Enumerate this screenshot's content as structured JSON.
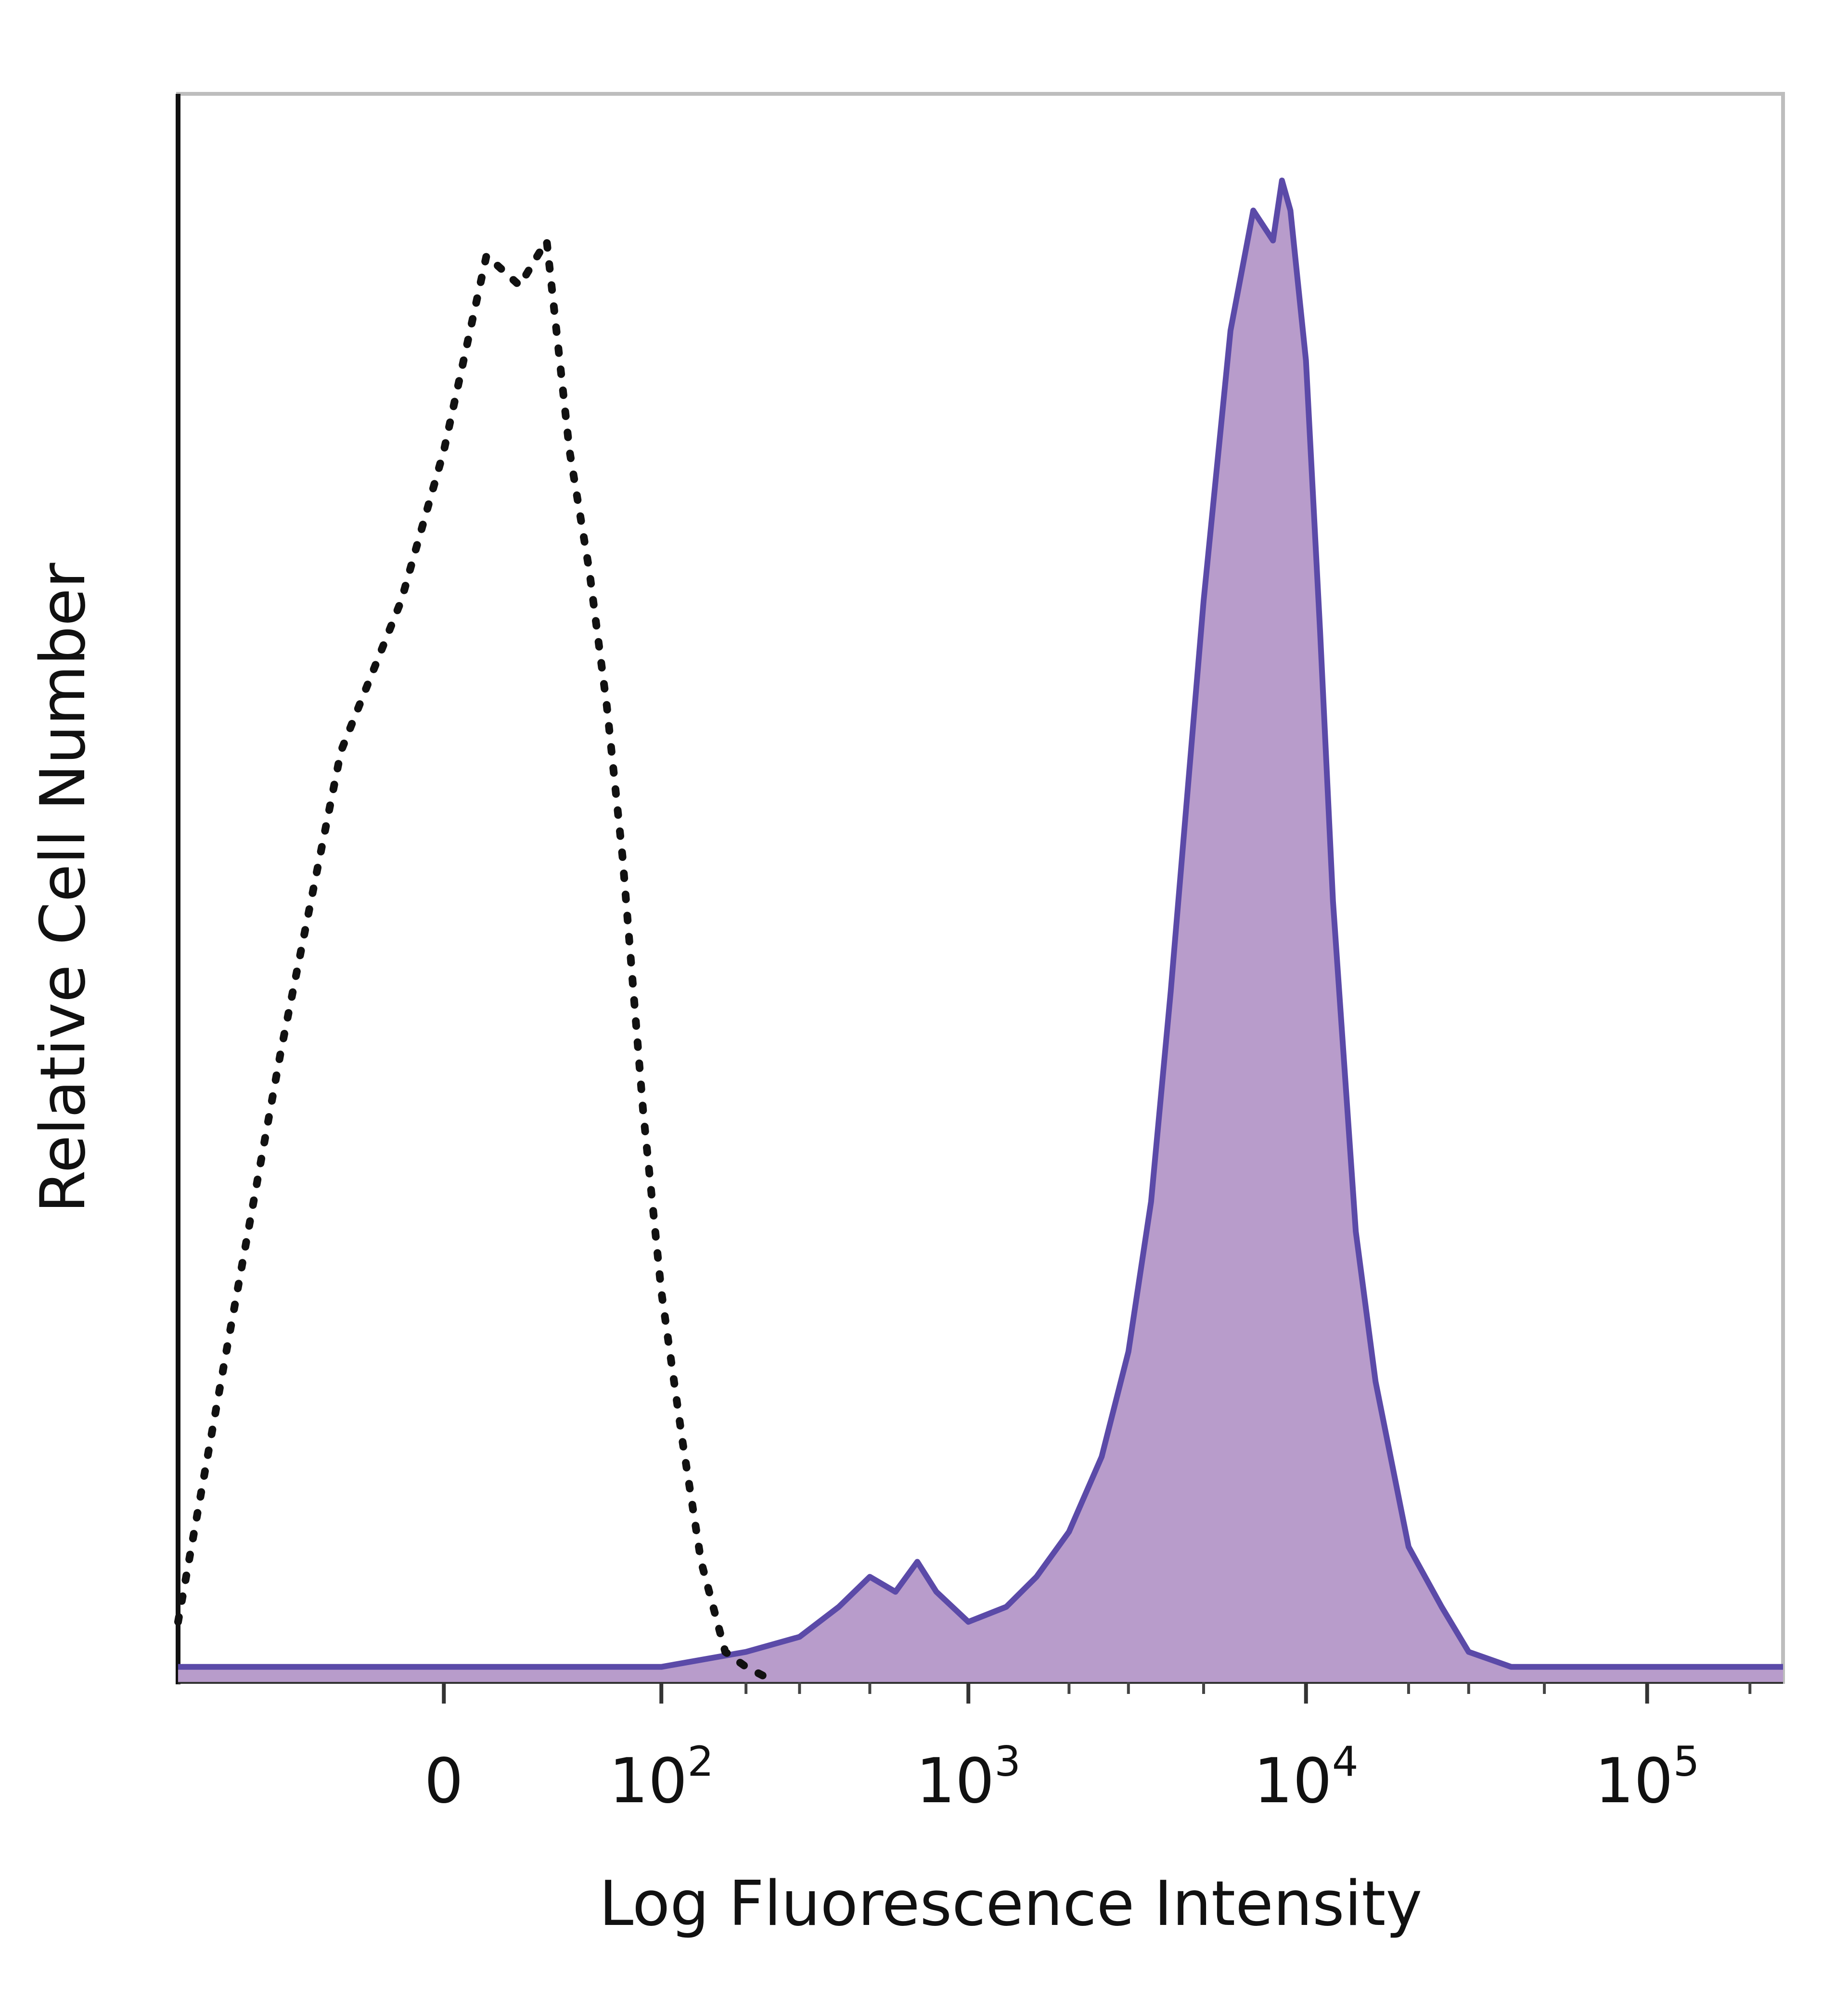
{
  "chart_data": {
    "type": "area",
    "xlabel": "Log Fluorescence Intensity",
    "ylabel": "Relative Cell Number",
    "x_scale": "biexponential",
    "x_ticks": [
      {
        "value": 0,
        "base": "0",
        "exp": ""
      },
      {
        "value": 100,
        "base": "10",
        "exp": "2"
      },
      {
        "value": 1000,
        "base": "10",
        "exp": "3"
      },
      {
        "value": 10000,
        "base": "10",
        "exp": "4"
      },
      {
        "value": 100000,
        "base": "10",
        "exp": "5"
      }
    ],
    "xlim": [
      -150,
      250000
    ],
    "ylim": [
      0,
      1
    ],
    "grid": false,
    "legend": "none",
    "series": [
      {
        "style": "dotted",
        "color": "#111111",
        "x": [
          -150,
          -100,
          -60,
          -30,
          -10,
          0,
          10,
          20,
          30,
          40,
          50,
          60,
          70,
          85,
          100,
          120,
          140,
          170,
          200,
          250
        ],
        "y": [
          0.04,
          0.22,
          0.42,
          0.62,
          0.72,
          0.82,
          0.95,
          0.93,
          0.96,
          0.82,
          0.74,
          0.65,
          0.55,
          0.38,
          0.26,
          0.16,
          0.08,
          0.02,
          0.01,
          0.0
        ]
      },
      {
        "style": "filled",
        "color": "#5b4aa8",
        "fill": "#b89ccb",
        "x": [
          -150,
          0,
          100,
          200,
          300,
          400,
          500,
          600,
          700,
          800,
          1000,
          1300,
          1600,
          2000,
          2500,
          3000,
          3500,
          4000,
          5000,
          6000,
          7000,
          8000,
          8500,
          9000,
          10000,
          11000,
          12000,
          14000,
          16000,
          20000,
          25000,
          30000,
          40000,
          60000,
          100000,
          250000
        ],
        "y": [
          0.01,
          0.01,
          0.01,
          0.02,
          0.03,
          0.05,
          0.07,
          0.06,
          0.08,
          0.06,
          0.04,
          0.05,
          0.07,
          0.1,
          0.15,
          0.22,
          0.32,
          0.46,
          0.72,
          0.9,
          0.98,
          0.96,
          1.0,
          0.98,
          0.88,
          0.7,
          0.52,
          0.3,
          0.2,
          0.09,
          0.05,
          0.02,
          0.01,
          0.01,
          0.01,
          0.01
        ]
      }
    ]
  }
}
